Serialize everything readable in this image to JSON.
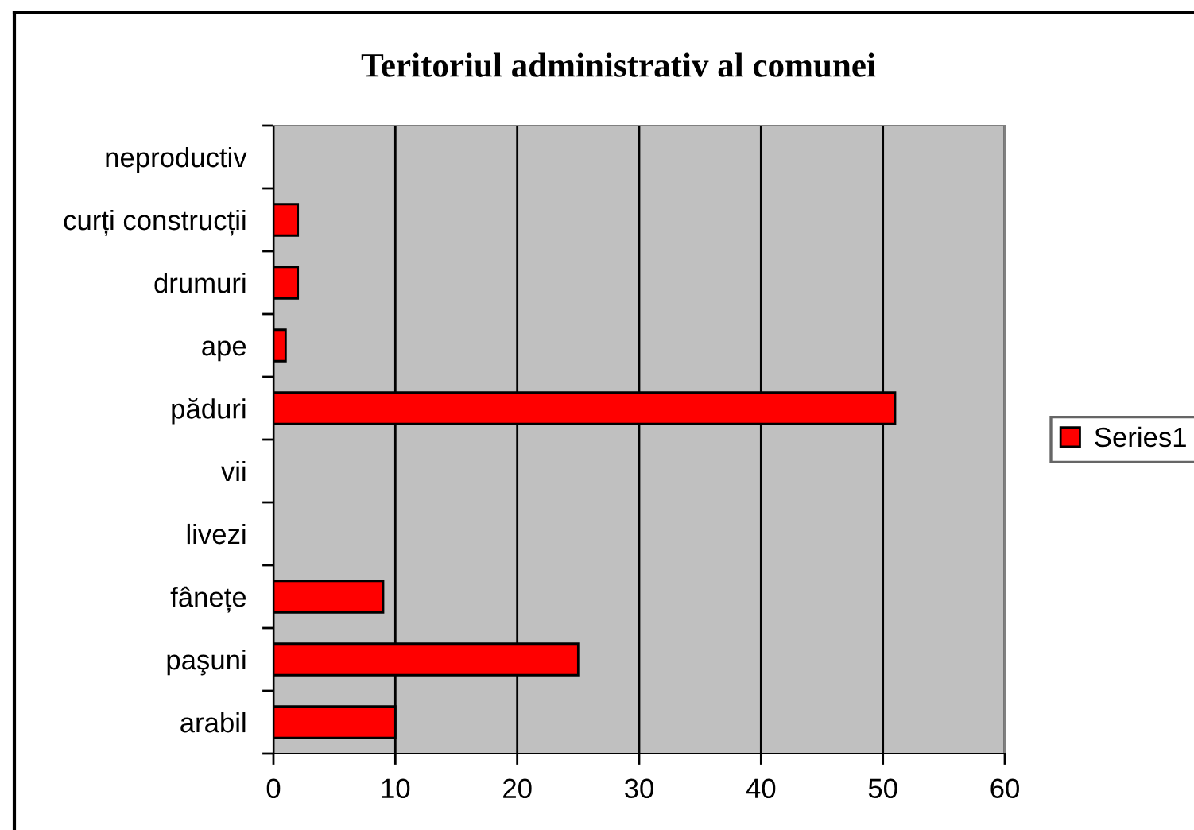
{
  "chart_data": {
    "type": "bar",
    "orientation": "horizontal",
    "title": "Teritoriul administrativ al comunei",
    "categories": [
      "neproductiv",
      "curți construcții",
      "drumuri",
      "ape",
      "păduri",
      "vii",
      "livezi",
      "fânețe",
      "paşuni",
      "arabil"
    ],
    "series": [
      {
        "name": "Series1",
        "color": "#ff0000",
        "values": [
          0,
          2,
          2,
          1,
          51,
          0,
          0,
          9,
          25,
          10
        ]
      }
    ],
    "xlim": [
      0,
      60
    ],
    "xticks": [
      0,
      10,
      20,
      30,
      40,
      50,
      60
    ],
    "grid": "x",
    "legend": "right"
  }
}
